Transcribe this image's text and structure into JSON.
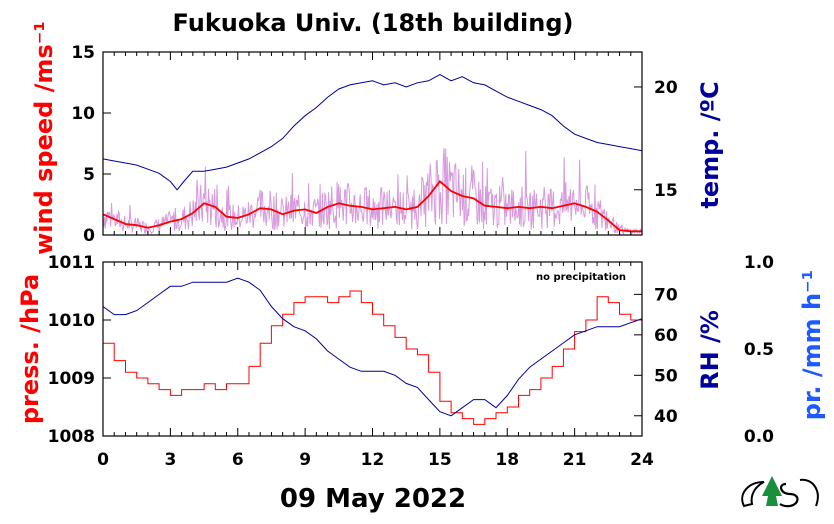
{
  "title": "Fukuoka Univ. (18th building)",
  "date_label": "09 May 2022",
  "colors": {
    "wind": "#ff0000",
    "wind_raw": "#c878d2",
    "temp": "#00009b",
    "press": "#ff0000",
    "rh": "#00009b",
    "precip": "#1e5aff"
  },
  "chart_data": [
    {
      "type": "line",
      "panel": "top",
      "xlim": [
        0,
        24
      ],
      "x_ticks": [
        "0",
        "3",
        "6",
        "9",
        "12",
        "15",
        "18",
        "21",
        "24"
      ],
      "left_axis": {
        "label": "wind speed /ms⁻¹",
        "ylim": [
          0,
          15
        ],
        "ticks": [
          "0",
          "5",
          "10",
          "15"
        ]
      },
      "right_axis": {
        "label": "temp. /ºC",
        "ylim": [
          12.8,
          21.7
        ],
        "ticks": [
          "15",
          "20"
        ]
      },
      "series": [
        {
          "axis": "left",
          "color": "#ff0000",
          "smoothed": true,
          "x": [
            0,
            0.5,
            1,
            1.5,
            2,
            2.5,
            3,
            3.5,
            4,
            4.5,
            5,
            5.5,
            6,
            6.5,
            7,
            7.5,
            8,
            8.5,
            9,
            9.5,
            10,
            10.5,
            11,
            11.5,
            12,
            12.5,
            13,
            13.5,
            14,
            14.5,
            15,
            15.5,
            16,
            16.5,
            17,
            17.5,
            18,
            18.5,
            19,
            19.5,
            20,
            20.5,
            21,
            21.5,
            22,
            22.5,
            23,
            23.5,
            24
          ],
          "y": [
            1.7,
            1.3,
            0.9,
            0.8,
            0.6,
            0.8,
            1.1,
            1.3,
            1.8,
            2.6,
            2.3,
            1.5,
            1.4,
            1.7,
            2.2,
            2.1,
            1.7,
            2.0,
            2.1,
            1.8,
            2.3,
            2.6,
            2.4,
            2.3,
            2.1,
            2.2,
            2.3,
            2.1,
            2.3,
            3.2,
            4.4,
            3.6,
            3.2,
            3.0,
            2.4,
            2.3,
            2.2,
            2.3,
            2.2,
            2.3,
            2.2,
            2.4,
            2.6,
            2.3,
            1.9,
            1.2,
            0.4,
            0.3,
            0.3
          ]
        },
        {
          "axis": "right",
          "color": "#00009b",
          "x": [
            0,
            0.5,
            1,
            1.5,
            2,
            2.5,
            3,
            3.3,
            3.6,
            4,
            4.5,
            5,
            5.5,
            6,
            6.5,
            7,
            7.5,
            8,
            8.5,
            9,
            9.5,
            10,
            10.5,
            11,
            11.5,
            12,
            12.5,
            13,
            13.5,
            14,
            14.5,
            15,
            15.5,
            16,
            16.5,
            17,
            17.5,
            18,
            18.5,
            19,
            19.5,
            20,
            20.5,
            21,
            21.5,
            22,
            22.5,
            23,
            23.5,
            24
          ],
          "y": [
            16.5,
            16.4,
            16.3,
            16.2,
            16.0,
            15.8,
            15.4,
            15.0,
            15.4,
            15.9,
            15.9,
            16.0,
            16.1,
            16.3,
            16.5,
            16.8,
            17.1,
            17.5,
            18.1,
            18.6,
            19.0,
            19.5,
            19.9,
            20.1,
            20.2,
            20.3,
            20.1,
            20.2,
            20.0,
            20.2,
            20.3,
            20.6,
            20.3,
            20.5,
            20.2,
            20.1,
            19.8,
            19.5,
            19.3,
            19.1,
            18.9,
            18.6,
            18.1,
            17.7,
            17.5,
            17.3,
            17.2,
            17.1,
            17.0,
            16.9
          ]
        }
      ]
    },
    {
      "type": "line",
      "panel": "bottom",
      "xlim": [
        0,
        24
      ],
      "x_ticks": [
        "0",
        "3",
        "6",
        "9",
        "12",
        "15",
        "18",
        "21",
        "24"
      ],
      "left_axis": {
        "label": "press. /hPa",
        "ylim": [
          1008,
          1011
        ],
        "ticks": [
          "1008",
          "1009",
          "1010",
          "1011"
        ]
      },
      "right_axis": {
        "label": "RH /%",
        "ylim": [
          35,
          78
        ],
        "ticks": [
          "40",
          "50",
          "60",
          "70"
        ]
      },
      "far_right_axis": {
        "label": "pr. /mm h⁻¹",
        "ylim": [
          0,
          1
        ],
        "ticks": [
          "0.0",
          "0.5",
          "1.0"
        ]
      },
      "annotation": "no precipitation",
      "series": [
        {
          "axis": "left",
          "color": "#ff0000",
          "x": [
            0,
            0.5,
            1,
            1.5,
            2,
            2.5,
            3,
            3.5,
            4,
            4.5,
            5,
            5.5,
            6,
            6.5,
            7,
            7.5,
            8,
            8.5,
            9,
            9.5,
            10,
            10.5,
            11,
            11.5,
            12,
            12.5,
            13,
            13.5,
            14,
            14.5,
            15,
            15.5,
            16,
            16.5,
            17,
            17.5,
            18,
            18.5,
            19,
            19.5,
            20,
            20.5,
            21,
            21.5,
            22,
            22.5,
            23,
            23.5,
            24
          ],
          "y": [
            1009.6,
            1009.3,
            1009.1,
            1009.0,
            1008.9,
            1008.8,
            1008.7,
            1008.8,
            1008.8,
            1008.9,
            1008.8,
            1008.9,
            1008.9,
            1009.2,
            1009.6,
            1009.9,
            1010.1,
            1010.3,
            1010.4,
            1010.4,
            1010.3,
            1010.4,
            1010.5,
            1010.3,
            1010.1,
            1009.9,
            1009.7,
            1009.5,
            1009.4,
            1009.1,
            1008.6,
            1008.4,
            1008.3,
            1008.2,
            1008.3,
            1008.4,
            1008.5,
            1008.7,
            1008.8,
            1009.0,
            1009.2,
            1009.5,
            1009.8,
            1010.0,
            1010.4,
            1010.3,
            1010.1,
            1010.0,
            1009.9
          ]
        },
        {
          "axis": "right",
          "color": "#00009b",
          "x": [
            0,
            0.5,
            1,
            1.5,
            2,
            2.5,
            3,
            3.5,
            4,
            4.5,
            5,
            5.5,
            6,
            6.5,
            7,
            7.5,
            8,
            8.5,
            9,
            9.5,
            10,
            10.5,
            11,
            11.5,
            12,
            12.5,
            13,
            13.5,
            14,
            14.5,
            15,
            15.5,
            16,
            16.5,
            17,
            17.5,
            18,
            18.5,
            19,
            19.5,
            20,
            20.5,
            21,
            21.5,
            22,
            22.5,
            23,
            23.5,
            24
          ],
          "y": [
            67,
            65,
            65,
            66,
            68,
            70,
            72,
            72,
            73,
            73,
            73,
            73,
            74,
            73,
            71,
            67,
            64,
            62,
            61,
            59,
            56,
            54,
            52,
            51,
            51,
            51,
            50,
            48,
            47,
            44,
            41,
            40,
            42,
            44,
            44,
            42,
            45,
            49,
            52,
            54,
            56,
            58,
            60,
            61,
            62,
            62,
            62,
            63,
            64
          ]
        }
      ]
    }
  ]
}
